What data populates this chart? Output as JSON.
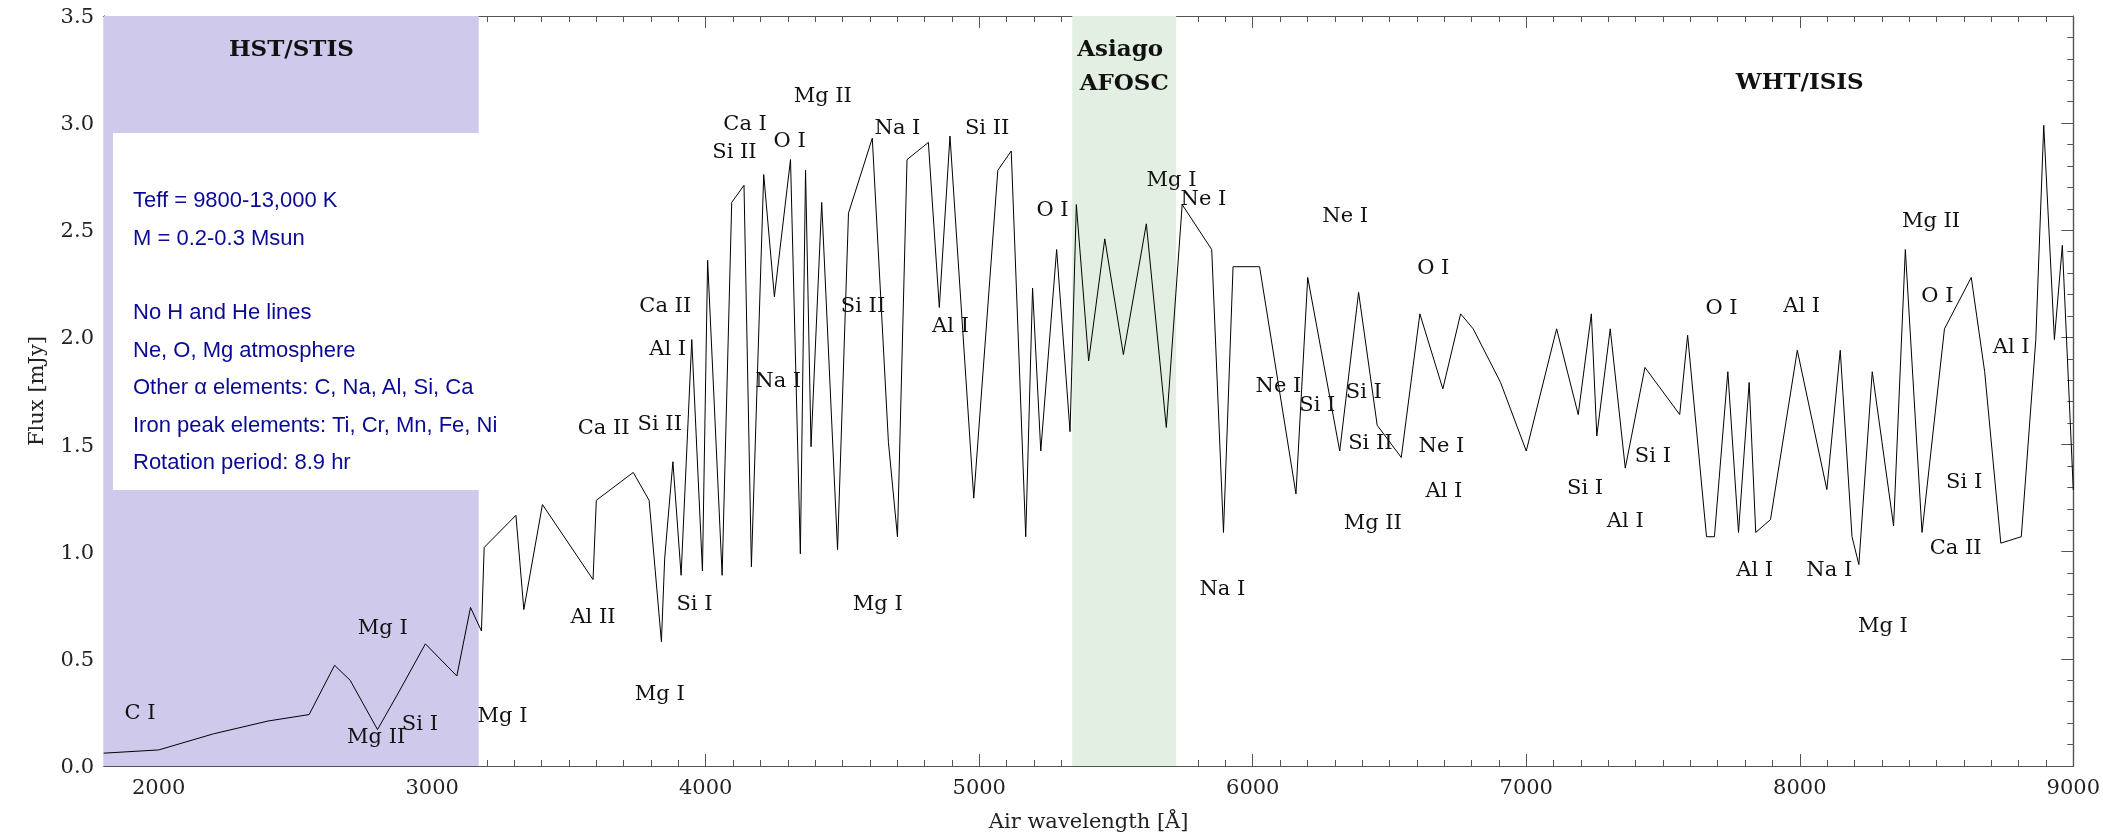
{
  "chart_data": {
    "type": "line",
    "xlabel": "Air wavelength [Å]",
    "ylabel": "Flux [mJy]",
    "xlim": [
      1800,
      9000
    ],
    "xticks": [
      2000,
      3000,
      4000,
      5000,
      6000,
      7000,
      8000,
      9000
    ],
    "ylim": [
      0,
      3.5
    ],
    "yticks": [
      {
        "value": 0,
        "label": "0.0"
      },
      {
        "value": 0.5,
        "label": "0.5"
      },
      {
        "value": 1,
        "label": "1.0"
      },
      {
        "value": 1.5,
        "label": "1.5"
      },
      {
        "value": 2,
        "label": "2.0"
      },
      {
        "value": 2.5,
        "label": "2.5"
      },
      {
        "value": 3,
        "label": "3.0"
      },
      {
        "value": 3.5,
        "label": "3.5"
      }
    ],
    "series": [
      {
        "color": "#000000",
        "x": [
          1800,
          2000,
          2200,
          2400,
          2550,
          2643,
          2700,
          2800,
          2880,
          2975,
          3090,
          3140,
          3180,
          3190,
          3306,
          3335,
          3403,
          3588,
          3600,
          3735,
          3793,
          3838,
          3850,
          3880,
          3910,
          3949,
          3988,
          4007,
          4060,
          4095,
          4140,
          4167,
          4212,
          4251,
          4310,
          4346,
          4365,
          4385,
          4424,
          4482,
          4522,
          4609,
          4668,
          4701,
          4736,
          4814,
          4854,
          4893,
          4980,
          5068,
          5117,
          5170,
          5195,
          5225,
          5283,
          5332,
          5355,
          5400,
          5459,
          5527,
          5611,
          5684,
          5742,
          5850,
          5893,
          5928,
          6025,
          6158,
          6201,
          6318,
          6387,
          6455,
          6543,
          6611,
          6695,
          6760,
          6806,
          6906,
          7000,
          7111,
          7190,
          7238,
          7258,
          7307,
          7362,
          7434,
          7561,
          7590,
          7659,
          7688,
          7737,
          7776,
          7815,
          7839,
          7893,
          7991,
          8099,
          8148,
          8191,
          8216,
          8265,
          8343,
          8386,
          8447,
          8529,
          8627,
          8676,
          8735,
          8810,
          8863,
          8892,
          8931,
          8960,
          9000
        ],
        "values": [
          0.06,
          0.075,
          0.15,
          0.21,
          0.24,
          0.47,
          0.4,
          0.17,
          0.35,
          0.57,
          0.42,
          0.74,
          0.63,
          1.02,
          1.17,
          0.73,
          1.22,
          0.87,
          1.24,
          1.37,
          1.24,
          0.58,
          0.97,
          1.42,
          0.89,
          1.99,
          0.91,
          2.36,
          0.89,
          2.63,
          2.71,
          0.93,
          2.76,
          2.19,
          2.83,
          0.99,
          2.78,
          1.49,
          2.63,
          1.01,
          2.58,
          2.93,
          1.51,
          1.07,
          2.83,
          2.91,
          2.14,
          2.94,
          1.25,
          2.78,
          2.87,
          1.07,
          2.23,
          1.47,
          2.41,
          1.56,
          2.62,
          1.89,
          2.46,
          1.92,
          2.53,
          1.58,
          2.62,
          2.41,
          1.09,
          2.33,
          2.33,
          1.27,
          2.28,
          1.47,
          2.21,
          1.59,
          1.44,
          2.11,
          1.76,
          2.11,
          2.04,
          1.79,
          1.47,
          2.04,
          1.64,
          2.11,
          1.54,
          2.04,
          1.39,
          1.86,
          1.64,
          2.01,
          1.07,
          1.07,
          1.84,
          1.09,
          1.79,
          1.09,
          1.15,
          1.94,
          1.29,
          1.94,
          1.07,
          0.94,
          1.84,
          1.12,
          2.41,
          1.09,
          2.04,
          2.28,
          1.84,
          1.04,
          1.07,
          1.99,
          2.99,
          1.99,
          2.43,
          1.29
        ]
      }
    ],
    "bands": [
      {
        "axis": "x",
        "from": 1800,
        "to": 3170,
        "label": "HST/STIS",
        "color": "#cfc9ec"
      },
      {
        "axis": "x",
        "from": 5340,
        "to": 5720,
        "label": "Asiago AFOSC",
        "color": "#e2efe2"
      }
    ],
    "annotations": [
      "Teff = 9800-13,000 K",
      "M = 0.2-0.3 Msun",
      "No H and He lines",
      "Ne, O, Mg atmosphere",
      "Other α elements: C, Na, Al, Si, Ca",
      "Iron peak elements: Ti, Cr, Mn, Fe, Ni",
      "Rotation period: 8.9 hr",
      "WHT/ISIS",
      "C I",
      "Mg I",
      "Mg II",
      "Si I",
      "Mg I",
      "Al II",
      "Mg I",
      "Si I",
      "Ca II",
      "Si II",
      "Al I",
      "Ca II",
      "Na I",
      "Si II",
      "Ca I",
      "O I",
      "Mg II",
      "Na I",
      "Si II",
      "Si II",
      "Al I",
      "Mg I",
      "O I",
      "Mg I",
      "Ne I",
      "Ne I",
      "O I",
      "Ne I",
      "Si I",
      "Si I",
      "Si II",
      "Ne I",
      "Mg II",
      "Na I",
      "Al I",
      "Si I",
      "Si I",
      "Al I",
      "O I",
      "Al I",
      "Al I",
      "Na I",
      "Mg I",
      "Mg II",
      "O I",
      "Al I",
      "Si I",
      "Ca II"
    ]
  }
}
